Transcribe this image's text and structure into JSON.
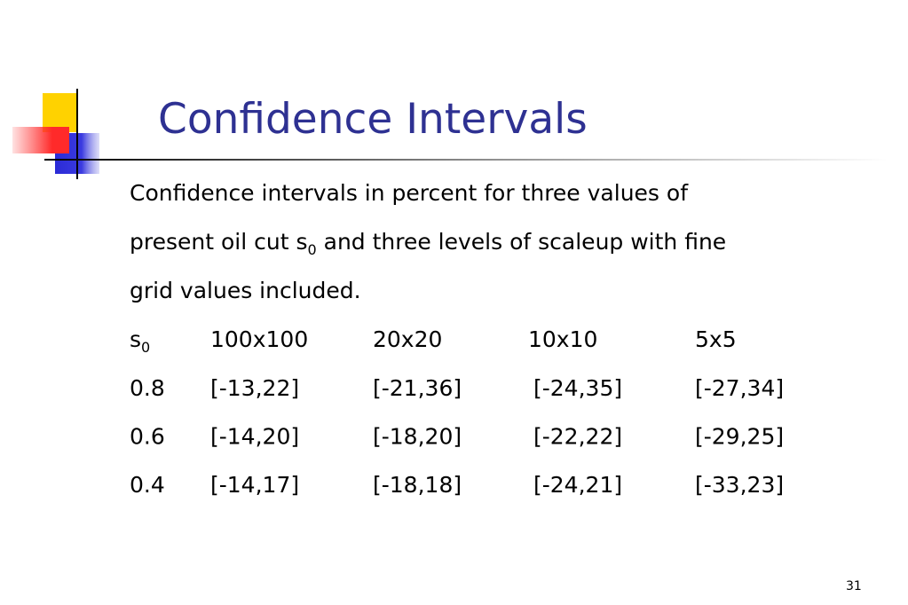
{
  "title": "Confidence Intervals",
  "body": {
    "line1": "Confidence intervals in percent for three values of",
    "line2": {
      "before": "present oil cut s",
      "subscript": "0",
      "after": " and three levels of scaleup with fine"
    },
    "line3": "grid values included."
  },
  "table": {
    "header": {
      "first": {
        "text": "s",
        "subscript": "0"
      },
      "columns": [
        "100x100",
        "20x20",
        "10x10",
        "5x5"
      ]
    },
    "rows": [
      [
        "0.8",
        "[-13,22]",
        "[-21,36]",
        "[-24,35]",
        "[-27,34]"
      ],
      [
        "0.6",
        "[-14,20]",
        "[-18,20]",
        "[-22,22]",
        "[-29,25]"
      ],
      [
        "0.4",
        "[-14,17]",
        "[-18,18]",
        "[-24,21]",
        "[-33,23]"
      ]
    ]
  },
  "page_number": "31"
}
